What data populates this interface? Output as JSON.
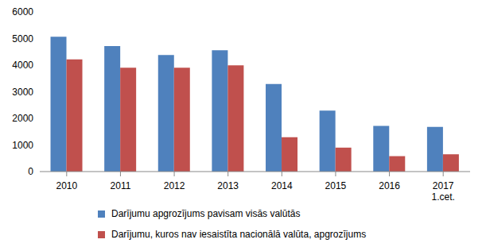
{
  "chart_data": {
    "type": "bar",
    "categories": [
      "2010",
      "2011",
      "2012",
      "2013",
      "2014",
      "2015",
      "2016",
      "2017\n1.cet."
    ],
    "series": [
      {
        "name": "Darījumu apgrozījums pavisam visās valūtās",
        "color": "#4f81bd",
        "values": [
          5070,
          4720,
          4380,
          4560,
          3290,
          2290,
          1720,
          1680
        ]
      },
      {
        "name": "Darījumu, kuros nav iesaistīta nacionālā valūta, apgrozījums",
        "color": "#c0504d",
        "values": [
          4220,
          3900,
          3900,
          3990,
          1290,
          900,
          580,
          650
        ]
      }
    ],
    "ylim": [
      0,
      6000
    ],
    "yticks": [
      0,
      1000,
      2000,
      3000,
      4000,
      5000,
      6000
    ],
    "grid": false,
    "legend": "bottom"
  }
}
